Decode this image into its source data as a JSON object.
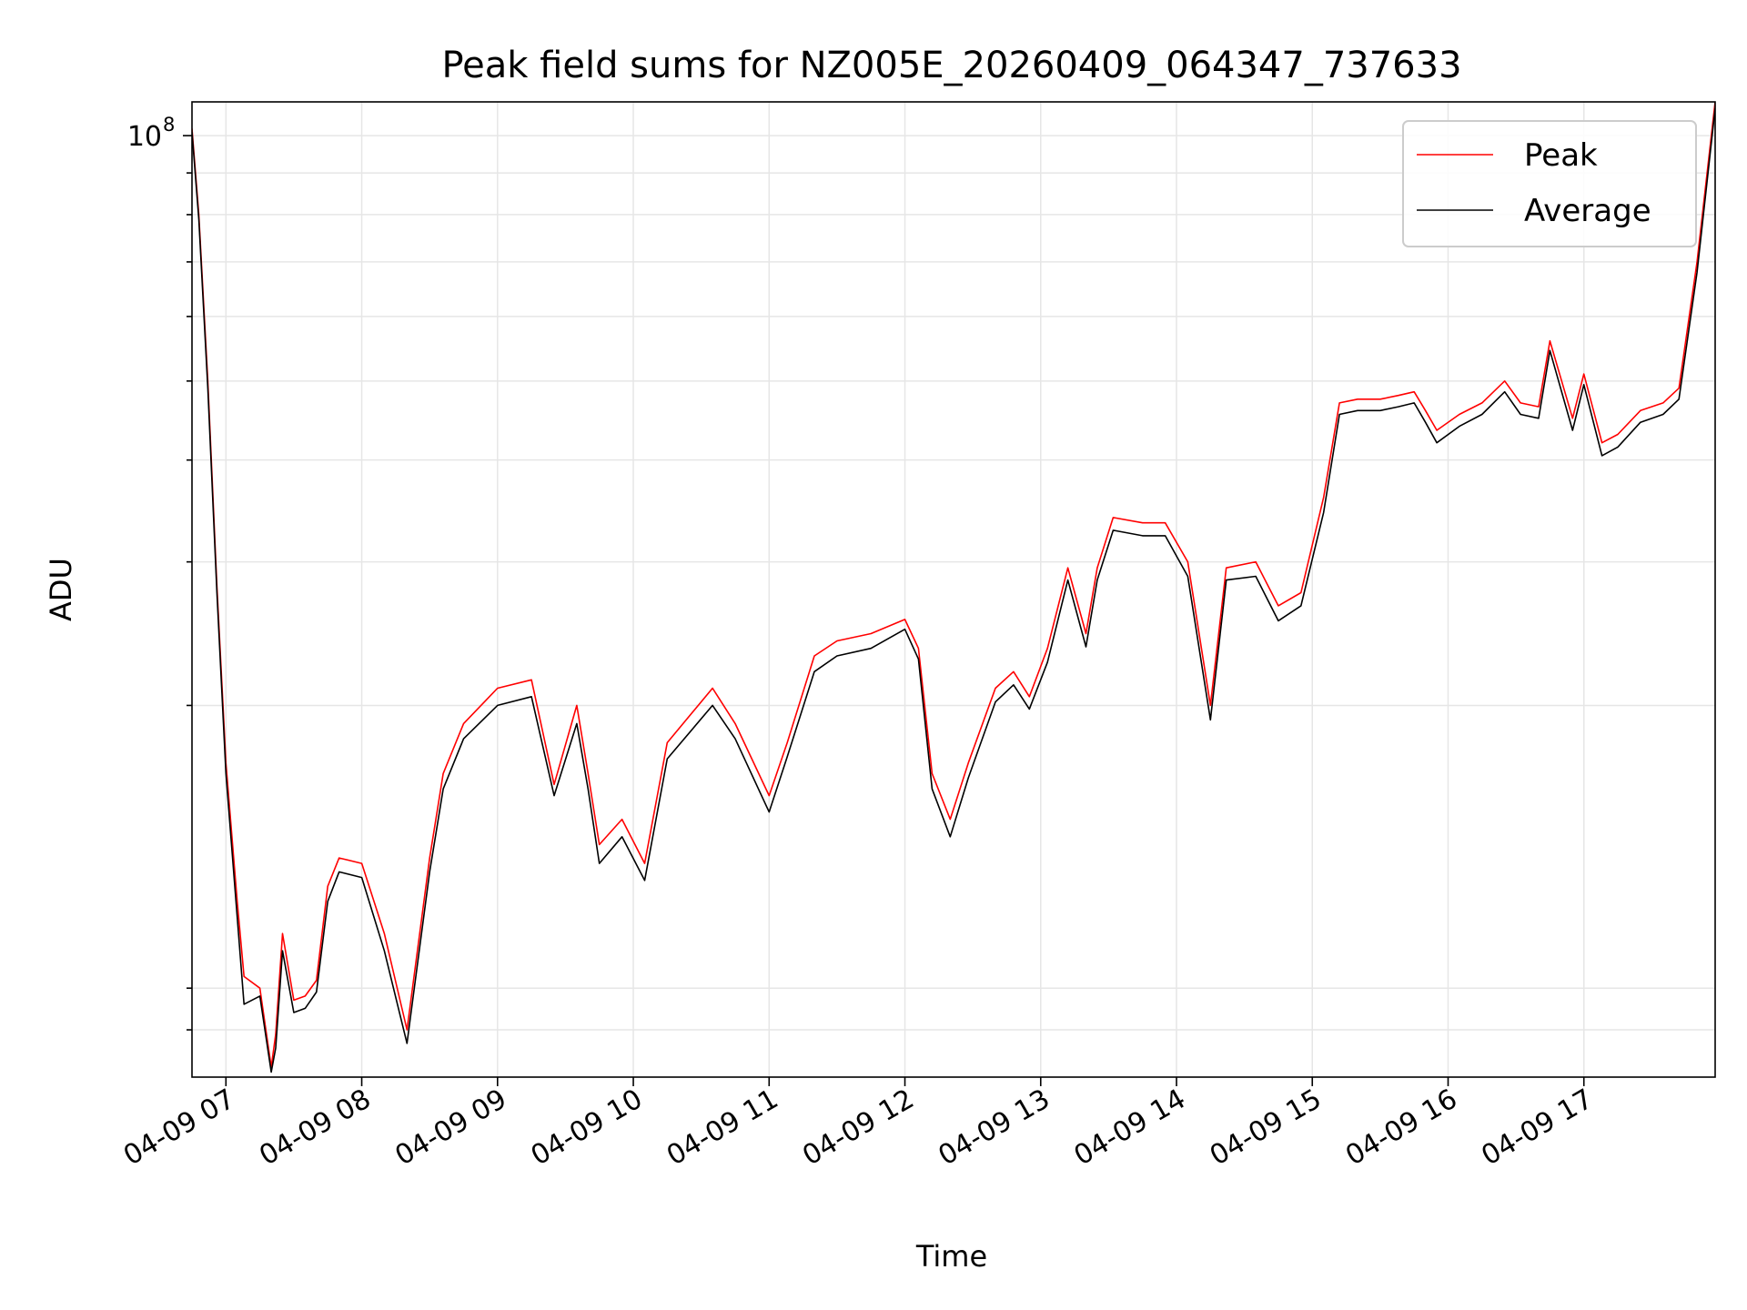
{
  "chart_data": {
    "type": "line",
    "title": "Peak field sums for NZ005E_20260409_064347_737633",
    "xlabel": "Time",
    "ylabel": "ADU",
    "y_scale": "log",
    "ylim": [
      7000000,
      110000000
    ],
    "xlim": [
      "2026-04-09 06:45",
      "2026-04-09 17:58"
    ],
    "y_major_tick": {
      "value": 100000000,
      "base": "10",
      "exponent": "8"
    },
    "y_minor_ticks": [
      8000000,
      9000000,
      20000000,
      30000000,
      40000000,
      50000000,
      60000000,
      70000000,
      80000000,
      90000000
    ],
    "x_ticks": [
      {
        "t": "2026-04-09 07:00",
        "label": "04-09 07"
      },
      {
        "t": "2026-04-09 08:00",
        "label": "04-09 08"
      },
      {
        "t": "2026-04-09 09:00",
        "label": "04-09 09"
      },
      {
        "t": "2026-04-09 10:00",
        "label": "04-09 10"
      },
      {
        "t": "2026-04-09 11:00",
        "label": "04-09 11"
      },
      {
        "t": "2026-04-09 12:00",
        "label": "04-09 12"
      },
      {
        "t": "2026-04-09 13:00",
        "label": "04-09 13"
      },
      {
        "t": "2026-04-09 14:00",
        "label": "04-09 14"
      },
      {
        "t": "2026-04-09 15:00",
        "label": "04-09 15"
      },
      {
        "t": "2026-04-09 16:00",
        "label": "04-09 16"
      },
      {
        "t": "2026-04-09 17:00",
        "label": "04-09 17"
      }
    ],
    "grid": true,
    "legend_position": "top-right",
    "series": [
      {
        "name": "Peak",
        "color": "#ff0000",
        "x": [
          "2026-04-09 06:45",
          "2026-04-09 06:48",
          "2026-04-09 06:52",
          "2026-04-09 06:56",
          "2026-04-09 07:00",
          "2026-04-09 07:05",
          "2026-04-09 07:08",
          "2026-04-09 07:15",
          "2026-04-09 07:20",
          "2026-04-09 07:22",
          "2026-04-09 07:25",
          "2026-04-09 07:30",
          "2026-04-09 07:35",
          "2026-04-09 07:40",
          "2026-04-09 07:45",
          "2026-04-09 07:50",
          "2026-04-09 08:00",
          "2026-04-09 08:10",
          "2026-04-09 08:20",
          "2026-04-09 08:30",
          "2026-04-09 08:36",
          "2026-04-09 08:45",
          "2026-04-09 09:00",
          "2026-04-09 09:15",
          "2026-04-09 09:25",
          "2026-04-09 09:35",
          "2026-04-09 09:40",
          "2026-04-09 09:45",
          "2026-04-09 09:55",
          "2026-04-09 10:05",
          "2026-04-09 10:15",
          "2026-04-09 10:35",
          "2026-04-09 10:45",
          "2026-04-09 11:00",
          "2026-04-09 11:08",
          "2026-04-09 11:20",
          "2026-04-09 11:30",
          "2026-04-09 11:45",
          "2026-04-09 12:00",
          "2026-04-09 12:06",
          "2026-04-09 12:12",
          "2026-04-09 12:20",
          "2026-04-09 12:28",
          "2026-04-09 12:40",
          "2026-04-09 12:48",
          "2026-04-09 12:55",
          "2026-04-09 13:03",
          "2026-04-09 13:12",
          "2026-04-09 13:20",
          "2026-04-09 13:25",
          "2026-04-09 13:32",
          "2026-04-09 13:45",
          "2026-04-09 13:55",
          "2026-04-09 14:05",
          "2026-04-09 14:15",
          "2026-04-09 14:22",
          "2026-04-09 14:35",
          "2026-04-09 14:45",
          "2026-04-09 14:55",
          "2026-04-09 15:05",
          "2026-04-09 15:12",
          "2026-04-09 15:20",
          "2026-04-09 15:30",
          "2026-04-09 15:38",
          "2026-04-09 15:45",
          "2026-04-09 15:50",
          "2026-04-09 15:55",
          "2026-04-09 16:05",
          "2026-04-09 16:15",
          "2026-04-09 16:25",
          "2026-04-09 16:32",
          "2026-04-09 16:40",
          "2026-04-09 16:45",
          "2026-04-09 16:55",
          "2026-04-09 17:00",
          "2026-04-09 17:08",
          "2026-04-09 17:15",
          "2026-04-09 17:25",
          "2026-04-09 17:35",
          "2026-04-09 17:42",
          "2026-04-09 17:50",
          "2026-04-09 17:58"
        ],
        "values": [
          102000000,
          80000000,
          50000000,
          28000000,
          17000000,
          11500000,
          9300000,
          9000000,
          7200000,
          7900000,
          10500000,
          8700000,
          8800000,
          9200000,
          12000000,
          13000000,
          12800000,
          10500000,
          8000000,
          13000000,
          16500000,
          19000000,
          21000000,
          21500000,
          16000000,
          20000000,
          16500000,
          13500000,
          14500000,
          12800000,
          18000000,
          21000000,
          19000000,
          15500000,
          18000000,
          23000000,
          24000000,
          24500000,
          25500000,
          23500000,
          16500000,
          14500000,
          17000000,
          21000000,
          22000000,
          20500000,
          23500000,
          29500000,
          24500000,
          29500000,
          34000000,
          33500000,
          33500000,
          30000000,
          20000000,
          29500000,
          30000000,
          26500000,
          27500000,
          36000000,
          47000000,
          47500000,
          47500000,
          48000000,
          48500000,
          46000000,
          43500000,
          45500000,
          47000000,
          50000000,
          47000000,
          46500000,
          56000000,
          45000000,
          51000000,
          42000000,
          43000000,
          46000000,
          47000000,
          49000000,
          70000000,
          110000000
        ]
      },
      {
        "name": "Average",
        "color": "#000000",
        "x": [
          "2026-04-09 06:45",
          "2026-04-09 06:48",
          "2026-04-09 06:52",
          "2026-04-09 06:56",
          "2026-04-09 07:00",
          "2026-04-09 07:05",
          "2026-04-09 07:08",
          "2026-04-09 07:15",
          "2026-04-09 07:20",
          "2026-04-09 07:22",
          "2026-04-09 07:25",
          "2026-04-09 07:30",
          "2026-04-09 07:35",
          "2026-04-09 07:40",
          "2026-04-09 07:45",
          "2026-04-09 07:50",
          "2026-04-09 08:00",
          "2026-04-09 08:10",
          "2026-04-09 08:20",
          "2026-04-09 08:30",
          "2026-04-09 08:36",
          "2026-04-09 08:45",
          "2026-04-09 09:00",
          "2026-04-09 09:15",
          "2026-04-09 09:25",
          "2026-04-09 09:35",
          "2026-04-09 09:40",
          "2026-04-09 09:45",
          "2026-04-09 09:55",
          "2026-04-09 10:05",
          "2026-04-09 10:15",
          "2026-04-09 10:35",
          "2026-04-09 10:45",
          "2026-04-09 11:00",
          "2026-04-09 11:08",
          "2026-04-09 11:20",
          "2026-04-09 11:30",
          "2026-04-09 11:45",
          "2026-04-09 12:00",
          "2026-04-09 12:06",
          "2026-04-09 12:12",
          "2026-04-09 12:20",
          "2026-04-09 12:28",
          "2026-04-09 12:40",
          "2026-04-09 12:48",
          "2026-04-09 12:55",
          "2026-04-09 13:03",
          "2026-04-09 13:12",
          "2026-04-09 13:20",
          "2026-04-09 13:25",
          "2026-04-09 13:32",
          "2026-04-09 13:45",
          "2026-04-09 13:55",
          "2026-04-09 14:05",
          "2026-04-09 14:15",
          "2026-04-09 14:22",
          "2026-04-09 14:35",
          "2026-04-09 14:45",
          "2026-04-09 14:55",
          "2026-04-09 15:05",
          "2026-04-09 15:12",
          "2026-04-09 15:20",
          "2026-04-09 15:30",
          "2026-04-09 15:38",
          "2026-04-09 15:45",
          "2026-04-09 15:50",
          "2026-04-09 15:55",
          "2026-04-09 16:05",
          "2026-04-09 16:15",
          "2026-04-09 16:25",
          "2026-04-09 16:32",
          "2026-04-09 16:40",
          "2026-04-09 16:45",
          "2026-04-09 16:55",
          "2026-04-09 17:00",
          "2026-04-09 17:08",
          "2026-04-09 17:15",
          "2026-04-09 17:25",
          "2026-04-09 17:35",
          "2026-04-09 17:42",
          "2026-04-09 17:50",
          "2026-04-09 17:58"
        ],
        "values": [
          101000000,
          79000000,
          49000000,
          27500000,
          16500000,
          11000000,
          8600000,
          8800000,
          7100000,
          7600000,
          10000000,
          8400000,
          8500000,
          8900000,
          11500000,
          12500000,
          12300000,
          10000000,
          7700000,
          12500000,
          15800000,
          18200000,
          20000000,
          20500000,
          15500000,
          19000000,
          15800000,
          12800000,
          13800000,
          12200000,
          17200000,
          20000000,
          18200000,
          14800000,
          17300000,
          22000000,
          23000000,
          23500000,
          24800000,
          22800000,
          15800000,
          13800000,
          16300000,
          20200000,
          21200000,
          19800000,
          22600000,
          28500000,
          23600000,
          28500000,
          32800000,
          32300000,
          32300000,
          28800000,
          19200000,
          28500000,
          28800000,
          25400000,
          26500000,
          34500000,
          45500000,
          46000000,
          46000000,
          46500000,
          47000000,
          44500000,
          42000000,
          44000000,
          45500000,
          48500000,
          45500000,
          45000000,
          54500000,
          43500000,
          49500000,
          40500000,
          41500000,
          44500000,
          45500000,
          47500000,
          68000000,
          108000000
        ]
      }
    ]
  }
}
